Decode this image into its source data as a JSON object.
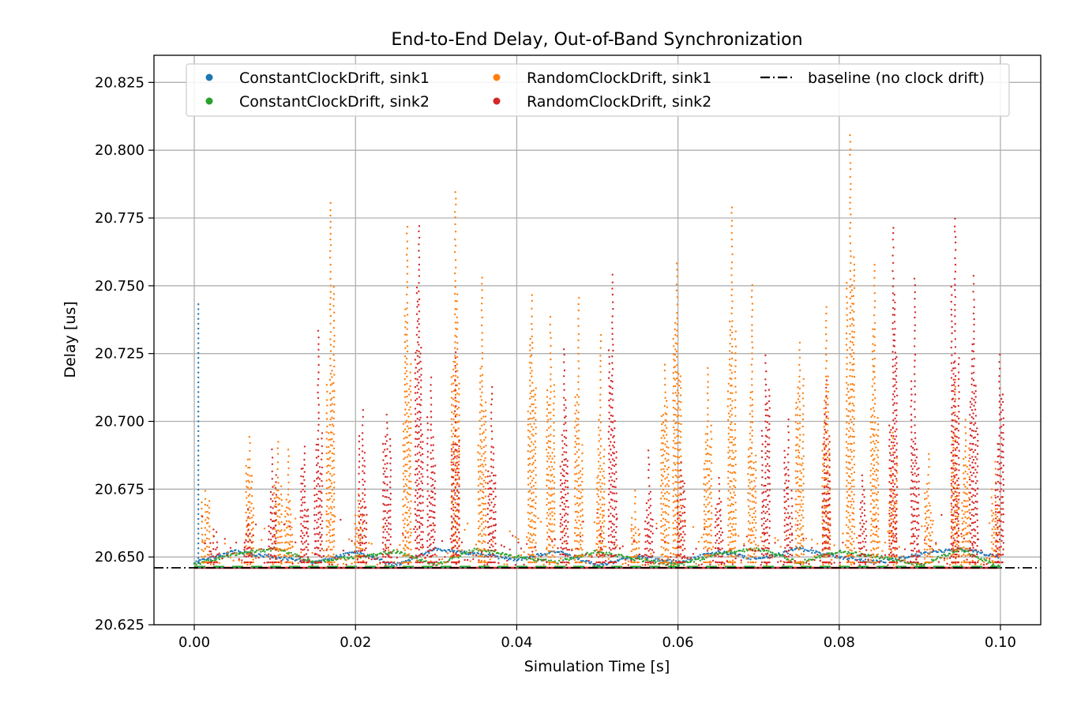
{
  "chart_data": {
    "type": "scatter",
    "title": "End-to-End Delay, Out-of-Band Synchronization",
    "xlabel": "Simulation Time [s]",
    "ylabel": "Delay [us]",
    "xlim": [
      -0.005,
      0.105
    ],
    "ylim": [
      20.625,
      20.835
    ],
    "xticks": [
      0.0,
      0.02,
      0.04,
      0.06,
      0.08,
      0.1
    ],
    "xtick_labels": [
      "0.00",
      "0.02",
      "0.04",
      "0.06",
      "0.08",
      "0.10"
    ],
    "yticks": [
      20.625,
      20.65,
      20.675,
      20.7,
      20.725,
      20.75,
      20.775,
      20.8,
      20.825
    ],
    "ytick_labels": [
      "20.625",
      "20.650",
      "20.675",
      "20.700",
      "20.725",
      "20.750",
      "20.775",
      "20.800",
      "20.825"
    ],
    "grid": true,
    "legend_position": "top",
    "legend": [
      {
        "label": "ConstantClockDrift, sink1",
        "marker": "dot",
        "color": "#1f77b4"
      },
      {
        "label": "ConstantClockDrift, sink2",
        "marker": "dot",
        "color": "#2ca02c"
      },
      {
        "label": "RandomClockDrift, sink1",
        "marker": "dot",
        "color": "#ff7f0e"
      },
      {
        "label": "RandomClockDrift, sink2",
        "marker": "dot",
        "color": "#d62728"
      },
      {
        "label": "baseline (no clock drift)",
        "marker": "dashdot-line",
        "color": "#000000"
      }
    ],
    "series": [
      {
        "name": "ConstantClockDrift, sink1",
        "color": "#1f77b4",
        "initial_transient": {
          "x": 0.0005,
          "y_from": 20.646,
          "y_to": 20.744
        },
        "points": [
          [
            0.0,
            20.648
          ],
          [
            0.005,
            20.652
          ],
          [
            0.01,
            20.65
          ],
          [
            0.015,
            20.648
          ],
          [
            0.02,
            20.652
          ],
          [
            0.025,
            20.647
          ],
          [
            0.03,
            20.653
          ],
          [
            0.035,
            20.651
          ],
          [
            0.04,
            20.649
          ],
          [
            0.045,
            20.652
          ],
          [
            0.05,
            20.647
          ],
          [
            0.055,
            20.65
          ],
          [
            0.06,
            20.648
          ],
          [
            0.065,
            20.652
          ],
          [
            0.07,
            20.649
          ],
          [
            0.075,
            20.653
          ],
          [
            0.08,
            20.65
          ],
          [
            0.085,
            20.648
          ],
          [
            0.09,
            20.651
          ],
          [
            0.095,
            20.653
          ],
          [
            0.1,
            20.65
          ]
        ]
      },
      {
        "name": "ConstantClockDrift, sink2",
        "color": "#2ca02c",
        "points": [
          [
            0.0,
            20.647
          ],
          [
            0.005,
            20.651
          ],
          [
            0.01,
            20.653
          ],
          [
            0.015,
            20.648
          ],
          [
            0.02,
            20.65
          ],
          [
            0.025,
            20.652
          ],
          [
            0.03,
            20.647
          ],
          [
            0.035,
            20.653
          ],
          [
            0.04,
            20.65
          ],
          [
            0.045,
            20.648
          ],
          [
            0.05,
            20.652
          ],
          [
            0.055,
            20.649
          ],
          [
            0.06,
            20.647
          ],
          [
            0.065,
            20.651
          ],
          [
            0.07,
            20.653
          ],
          [
            0.075,
            20.648
          ],
          [
            0.08,
            20.652
          ],
          [
            0.085,
            20.65
          ],
          [
            0.09,
            20.647
          ],
          [
            0.095,
            20.653
          ],
          [
            0.1,
            20.646
          ]
        ]
      },
      {
        "name": "RandomClockDrift, sink1",
        "color": "#ff7f0e",
        "bursts": [
          [
            0.0015,
            20.677
          ],
          [
            0.007,
            20.695
          ],
          [
            0.0105,
            20.693
          ],
          [
            0.0118,
            20.691
          ],
          [
            0.017,
            20.783
          ],
          [
            0.0205,
            20.675
          ],
          [
            0.0265,
            20.773
          ],
          [
            0.0325,
            20.786
          ],
          [
            0.0358,
            20.753
          ],
          [
            0.042,
            20.749
          ],
          [
            0.0443,
            20.739
          ],
          [
            0.0478,
            20.746
          ],
          [
            0.0505,
            20.732
          ],
          [
            0.0548,
            20.676
          ],
          [
            0.0585,
            20.722
          ],
          [
            0.06,
            20.76
          ],
          [
            0.0638,
            20.722
          ],
          [
            0.0668,
            20.78
          ],
          [
            0.0693,
            20.751
          ],
          [
            0.0752,
            20.731
          ],
          [
            0.0785,
            20.744
          ],
          [
            0.0815,
            20.807
          ],
          [
            0.0845,
            20.76
          ],
          [
            0.0868,
            20.698
          ],
          [
            0.0912,
            20.69
          ],
          [
            0.0945,
            20.716
          ],
          [
            0.0958,
            20.702
          ],
          [
            0.0995,
            20.686
          ]
        ]
      },
      {
        "name": "RandomClockDrift, sink2",
        "color": "#d62728",
        "bursts": [
          [
            0.0025,
            20.662
          ],
          [
            0.0068,
            20.67
          ],
          [
            0.0098,
            20.69
          ],
          [
            0.0138,
            20.692
          ],
          [
            0.0155,
            20.735
          ],
          [
            0.021,
            20.705
          ],
          [
            0.024,
            20.705
          ],
          [
            0.028,
            20.773
          ],
          [
            0.0295,
            20.718
          ],
          [
            0.0325,
            20.728
          ],
          [
            0.037,
            20.713
          ],
          [
            0.046,
            20.728
          ],
          [
            0.0505,
            20.664
          ],
          [
            0.052,
            20.755
          ],
          [
            0.0565,
            20.69
          ],
          [
            0.0605,
            20.685
          ],
          [
            0.0652,
            20.681
          ],
          [
            0.071,
            20.725
          ],
          [
            0.0738,
            20.702
          ],
          [
            0.0785,
            20.716
          ],
          [
            0.083,
            20.681
          ],
          [
            0.0868,
            20.773
          ],
          [
            0.0895,
            20.754
          ],
          [
            0.0945,
            20.775
          ],
          [
            0.0968,
            20.755
          ],
          [
            0.1,
            20.726
          ]
        ]
      },
      {
        "name": "baseline (no clock drift)",
        "color": "#000000",
        "style": "dashdot",
        "y": 20.646
      }
    ]
  }
}
